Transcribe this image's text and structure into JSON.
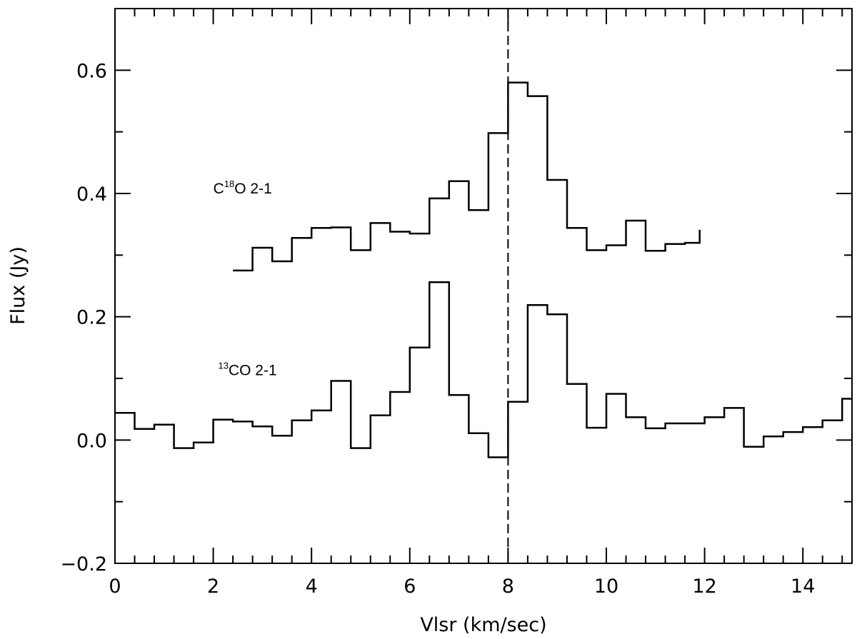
{
  "chart_data": {
    "type": "line",
    "step": true,
    "xlabel": "Vlsr (km/sec)",
    "ylabel": "Flux (Jy)",
    "xlim": [
      0,
      15
    ],
    "ylim": [
      -0.2,
      0.7
    ],
    "xticks": [
      0,
      2,
      4,
      6,
      8,
      10,
      12,
      14
    ],
    "xtick_labels": [
      "0",
      "2",
      "4",
      "6",
      "8",
      "10",
      "12",
      "14"
    ],
    "yticks": [
      -0.2,
      0.0,
      0.2,
      0.4,
      0.6
    ],
    "ytick_labels": [
      "−0.2",
      "0.0",
      "0.2",
      "0.4",
      "0.6"
    ],
    "vline": {
      "x": 8.0,
      "style": "dashed"
    },
    "series": [
      {
        "label_parts": {
          "pre": "C",
          "sup": "18",
          "post": "O 2-1"
        },
        "label_anchor": [
          2.0,
          0.4
        ],
        "x": [
          2.4,
          2.8,
          3.2,
          3.6,
          4.0,
          4.4,
          4.8,
          5.2,
          5.6,
          6.0,
          6.4,
          6.8,
          7.2,
          7.6,
          8.0,
          8.4,
          8.8,
          9.2,
          9.6,
          10.0,
          10.4,
          10.8,
          11.2,
          11.6
        ],
        "y": [
          0.275,
          0.312,
          0.29,
          0.328,
          0.344,
          0.345,
          0.308,
          0.352,
          0.338,
          0.335,
          0.392,
          0.42,
          0.373,
          0.498,
          0.58,
          0.558,
          0.422,
          0.344,
          0.308,
          0.316,
          0.356,
          0.307,
          0.318,
          0.32
        ],
        "x_end": 11.9,
        "y_end": 0.341
      },
      {
        "label_parts": {
          "pre": "",
          "sup": "13",
          "post": "CO 2-1"
        },
        "label_anchor": [
          2.1,
          0.105
        ],
        "x": [
          0.0,
          0.4,
          0.8,
          1.2,
          1.6,
          2.0,
          2.4,
          2.8,
          3.2,
          3.6,
          4.0,
          4.4,
          4.8,
          5.2,
          5.6,
          6.0,
          6.4,
          6.8,
          7.2,
          7.6,
          8.0,
          8.4,
          8.8,
          9.2,
          9.6,
          10.0,
          10.4,
          10.8,
          11.2,
          11.6,
          12.0,
          12.4,
          12.8,
          13.2,
          13.6,
          14.0,
          14.4,
          14.8
        ],
        "y": [
          0.044,
          0.018,
          0.025,
          -0.013,
          -0.004,
          0.033,
          0.03,
          0.022,
          0.007,
          0.032,
          0.048,
          0.096,
          -0.013,
          0.04,
          0.078,
          0.15,
          0.256,
          0.073,
          0.011,
          -0.028,
          0.062,
          0.219,
          0.204,
          0.091,
          0.02,
          0.075,
          0.037,
          0.019,
          0.027,
          0.027,
          0.037,
          0.052,
          -0.011,
          0.006,
          0.013,
          0.021,
          0.032,
          0.067
        ],
        "x_end": 15.0,
        "y_end": 0.067
      }
    ]
  }
}
